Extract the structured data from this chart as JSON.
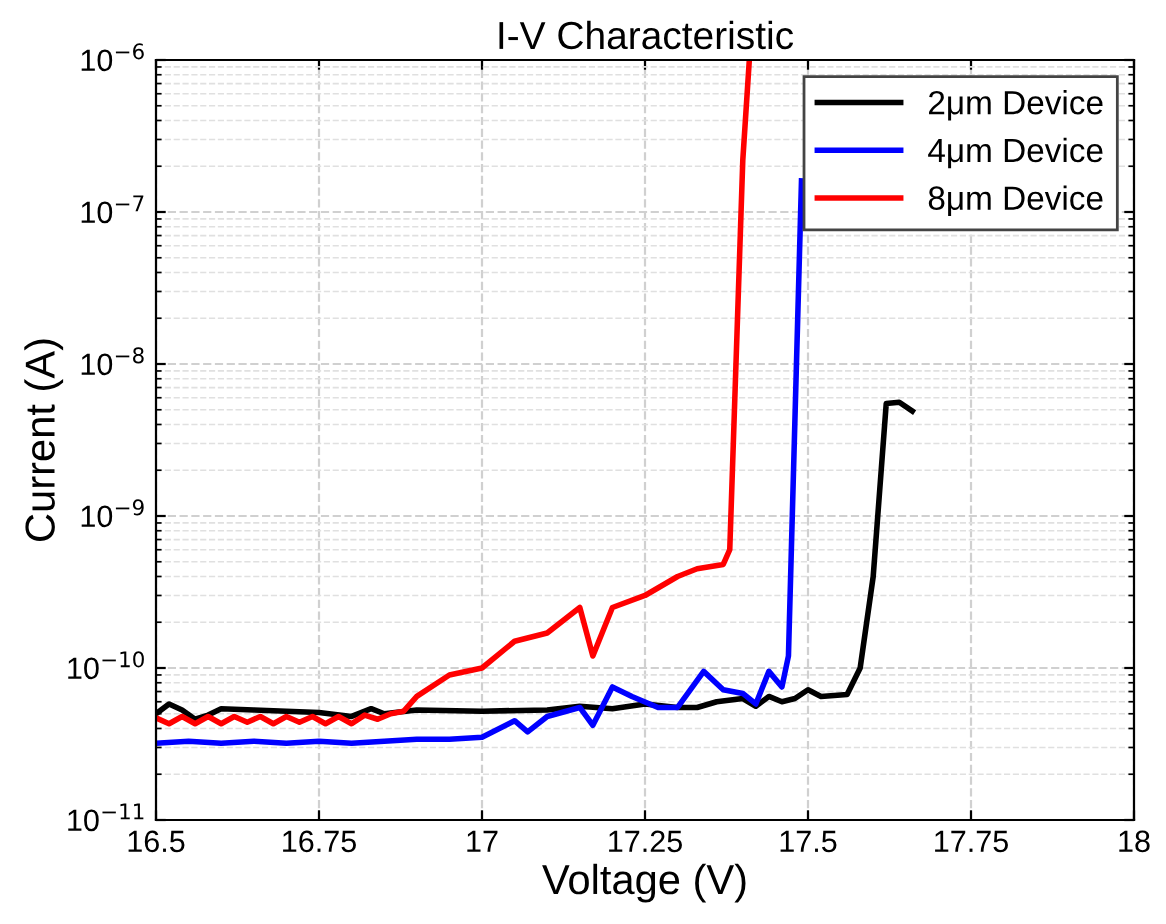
{
  "chart_data": {
    "type": "line",
    "title": "I-V Characteristic",
    "xlabel": "Voltage (V)",
    "ylabel": "Current (A)",
    "log": "y",
    "xlim": [
      16.5,
      18
    ],
    "xticks": [
      16.5,
      16.75,
      17,
      17.25,
      17.5,
      17.75,
      18
    ],
    "ylim": [
      1e-11,
      1e-06
    ],
    "yticks": [
      {
        "value": 1e-11,
        "label": "10$^{−11}$"
      },
      {
        "value": 1e-10,
        "label": "10$^{−10}$"
      },
      {
        "value": 1e-09,
        "label": "10$^{−9}$"
      },
      {
        "value": 1e-08,
        "label": "10$^{−8}$"
      },
      {
        "value": 1e-07,
        "label": "10$^{−7}$"
      },
      {
        "value": 1e-06,
        "label": "10$^{−6}$"
      }
    ],
    "grid": true,
    "legend": "top right",
    "marker": "none",
    "line_style": "solid",
    "series": [
      {
        "name": "2μm Device",
        "color": "#000000",
        "x": [
          16.5,
          16.52,
          16.54,
          16.56,
          16.58,
          16.6,
          16.65,
          16.7,
          16.75,
          16.8,
          16.83,
          16.85,
          16.9,
          17.0,
          17.1,
          17.15,
          17.2,
          17.25,
          17.3,
          17.33,
          17.36,
          17.4,
          17.42,
          17.44,
          17.46,
          17.48,
          17.5,
          17.52,
          17.56,
          17.58,
          17.6,
          17.62,
          17.64,
          17.66
        ],
        "values": [
          5e-11,
          5.8e-11,
          5.3e-11,
          4.6e-11,
          4.9e-11,
          5.4e-11,
          5.3e-11,
          5.2e-11,
          5.1e-11,
          4.8e-11,
          5.4e-11,
          5e-11,
          5.3e-11,
          5.2e-11,
          5.3e-11,
          5.6e-11,
          5.4e-11,
          5.8e-11,
          5.5e-11,
          5.5e-11,
          6e-11,
          6.3e-11,
          5.6e-11,
          6.5e-11,
          6e-11,
          6.3e-11,
          7.2e-11,
          6.5e-11,
          6.7e-11,
          1e-10,
          4e-10,
          5.5e-09,
          5.6e-09,
          4.9e-09
        ]
      },
      {
        "name": "4μm Device",
        "color": "#0000ff",
        "x": [
          16.5,
          16.55,
          16.6,
          16.65,
          16.7,
          16.75,
          16.8,
          16.85,
          16.9,
          16.95,
          17.0,
          17.05,
          17.07,
          17.1,
          17.15,
          17.17,
          17.2,
          17.23,
          17.27,
          17.3,
          17.34,
          17.37,
          17.4,
          17.42,
          17.44,
          17.46,
          17.47,
          17.49
        ],
        "values": [
          3.2e-11,
          3.3e-11,
          3.2e-11,
          3.3e-11,
          3.2e-11,
          3.3e-11,
          3.2e-11,
          3.3e-11,
          3.4e-11,
          3.4e-11,
          3.5e-11,
          4.5e-11,
          3.8e-11,
          4.8e-11,
          5.5e-11,
          4.2e-11,
          7.5e-11,
          6.5e-11,
          5.5e-11,
          5.5e-11,
          9.5e-11,
          7.2e-11,
          6.8e-11,
          5.8e-11,
          9.5e-11,
          7.5e-11,
          1.2e-10,
          1.6e-07
        ]
      },
      {
        "name": "8μm Device",
        "color": "#ff0000",
        "x": [
          16.5,
          16.52,
          16.54,
          16.56,
          16.58,
          16.6,
          16.62,
          16.64,
          16.66,
          16.68,
          16.7,
          16.72,
          16.74,
          16.76,
          16.78,
          16.8,
          16.82,
          16.84,
          16.86,
          16.88,
          16.9,
          16.95,
          17.0,
          17.05,
          17.1,
          17.15,
          17.17,
          17.2,
          17.25,
          17.3,
          17.33,
          17.37,
          17.38,
          17.4,
          17.41
        ],
        "values": [
          4.7e-11,
          4.3e-11,
          4.8e-11,
          4.3e-11,
          4.8e-11,
          4.3e-11,
          4.8e-11,
          4.4e-11,
          4.8e-11,
          4.3e-11,
          4.8e-11,
          4.4e-11,
          4.8e-11,
          4.3e-11,
          4.8e-11,
          4.3e-11,
          4.9e-11,
          4.6e-11,
          5e-11,
          5.2e-11,
          6.5e-11,
          9e-11,
          1e-10,
          1.5e-10,
          1.7e-10,
          2.5e-10,
          1.2e-10,
          2.5e-10,
          3e-10,
          4e-10,
          4.5e-10,
          4.8e-10,
          6e-10,
          2.2e-07,
          1e-06
        ]
      }
    ]
  }
}
